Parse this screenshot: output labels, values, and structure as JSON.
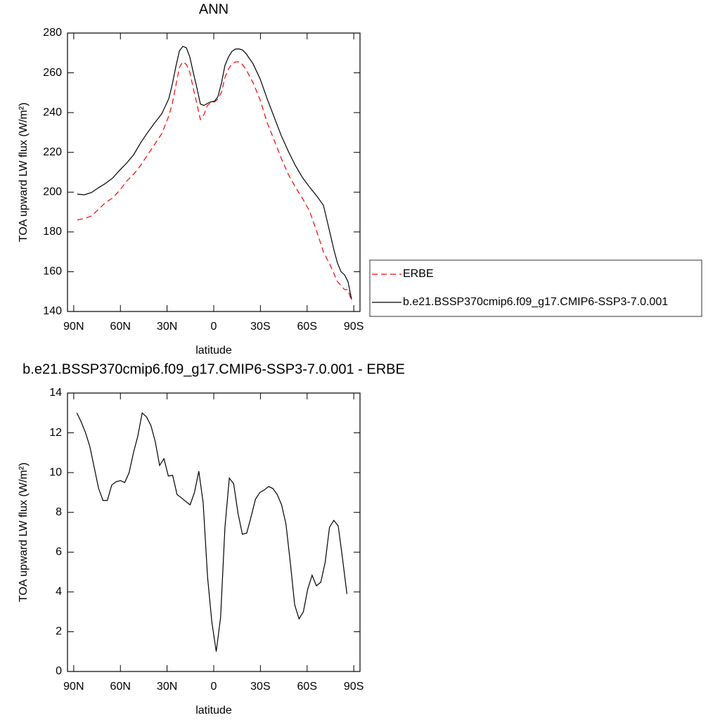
{
  "chart_data": [
    {
      "type": "line",
      "title": "ANN",
      "xlabel": "latitude",
      "ylabel": "TOA upward LW flux (W/m²)",
      "x": [
        87.7,
        83.2,
        78.6,
        74.1,
        69.6,
        65.1,
        60.6,
        56.0,
        51.5,
        47.0,
        42.5,
        38.0,
        33.4,
        28.9,
        26.7,
        24.4,
        22.1,
        19.9,
        17.6,
        15.4,
        13.1,
        10.8,
        8.6,
        6.3,
        4.1,
        1.8,
        -0.5,
        -2.7,
        -5.0,
        -7.2,
        -9.5,
        -11.7,
        -14.0,
        -16.3,
        -18.5,
        -20.8,
        -25.3,
        -29.8,
        -34.3,
        -38.9,
        -43.4,
        -47.9,
        -52.4,
        -56.9,
        -61.5,
        -66.0,
        -70.5,
        -75.0,
        -77.3,
        -79.5,
        -81.8,
        -84.1,
        -86.3,
        -88.6
      ],
      "series": [
        {
          "name": "ERBE",
          "color": "#ff0000",
          "line_style": "dashed",
          "values": [
            186,
            186.7,
            188,
            191.3,
            194.8,
            197,
            200.8,
            205.5,
            209,
            213.5,
            218.8,
            224,
            229.4,
            238.3,
            244.3,
            253.5,
            262.7,
            265.5,
            264.2,
            260.3,
            252,
            244.3,
            236.5,
            239,
            243.6,
            245,
            245.4,
            246.8,
            250.3,
            257.7,
            262,
            264.4,
            265.5,
            265.5,
            264.1,
            261.6,
            255,
            246.4,
            235,
            226,
            217,
            209,
            202.6,
            197,
            190.6,
            180.7,
            170,
            163,
            159,
            155,
            153,
            151,
            151,
            145
          ]
        },
        {
          "name": "b.e21.BSSP370cmip6.f09_g17.CMIP6-SSP3-7.0.001",
          "color": "#000000",
          "line_style": "solid",
          "values": [
            199,
            198.7,
            199.8,
            202.2,
            204.4,
            207,
            210.9,
            214.6,
            218.8,
            224.8,
            230,
            234.8,
            239.4,
            247,
            254,
            263,
            271,
            273.3,
            272.6,
            268,
            260,
            252.4,
            244.3,
            243.6,
            244.6,
            245.4,
            245.7,
            248,
            255,
            263.7,
            268,
            270.8,
            272,
            272,
            271.5,
            269.6,
            264.5,
            257,
            247,
            237.6,
            228.4,
            220.6,
            213.5,
            207.5,
            202.6,
            198.3,
            193.4,
            178.5,
            170.8,
            164.4,
            160,
            158.4,
            155,
            146
          ]
        }
      ],
      "xlim": [
        94,
        -94
      ],
      "xticks": [
        {
          "value": 90,
          "label": "90N"
        },
        {
          "value": 60,
          "label": "60N"
        },
        {
          "value": 30,
          "label": "30N"
        },
        0,
        {
          "value": -30,
          "label": "30S"
        },
        {
          "value": -60,
          "label": "60S"
        },
        {
          "value": -90,
          "label": "90S"
        }
      ],
      "ylim": [
        140,
        280
      ],
      "yticks": [
        140,
        160,
        180,
        200,
        220,
        240,
        260,
        280
      ],
      "legend": "right"
    },
    {
      "type": "line",
      "title": "b.e21.BSSP370cmip6.f09_g17.CMIP6-SSP3-7.0.001 - ERBE",
      "xlabel": "latitude",
      "ylabel": "TOA upward LW flux (W/m²)",
      "x": [
        88,
        85.2,
        82.4,
        79.6,
        76.8,
        74,
        71.2,
        68.4,
        65.6,
        62.8,
        60,
        57.2,
        54.4,
        51.6,
        48.8,
        46,
        43.2,
        40.4,
        37.6,
        34.8,
        32,
        29.2,
        26.4,
        23.6,
        20.8,
        18,
        15.2,
        12.4,
        9.6,
        6.8,
        4,
        1.2,
        -1.6,
        -4.4,
        -7.2,
        -10,
        -12.8,
        -15.6,
        -18.4,
        -21.2,
        -24,
        -26.8,
        -29.6,
        -32.4,
        -35.2,
        -38,
        -40.8,
        -43.6,
        -46.4,
        -49.2,
        -52,
        -54.8,
        -57.6,
        -60.4,
        -63.2,
        -66,
        -68.8,
        -71.6,
        -74.4,
        -77.2,
        -80,
        -82.8,
        -85.6
      ],
      "values": [
        13.0,
        12.55,
        12.0,
        11.3,
        10.25,
        9.2,
        8.6,
        8.6,
        9.37,
        9.54,
        9.6,
        9.5,
        10.0,
        11.0,
        11.84,
        13.0,
        12.8,
        12.37,
        11.56,
        10.36,
        10.7,
        9.83,
        9.86,
        8.9,
        8.73,
        8.55,
        8.38,
        9.0,
        10.07,
        8.48,
        4.77,
        2.47,
        1.0,
        2.72,
        7.25,
        9.72,
        9.44,
        7.95,
        6.9,
        6.96,
        7.78,
        8.66,
        9.0,
        9.12,
        9.3,
        9.2,
        8.9,
        8.38,
        7.42,
        5.48,
        3.36,
        2.65,
        3.0,
        4.14,
        4.84,
        4.31,
        4.49,
        5.48,
        7.25,
        7.6,
        7.32,
        5.66,
        3.9
      ],
      "color": "#000000",
      "line_style": "solid",
      "xlim": [
        94,
        -94
      ],
      "xticks": [
        {
          "value": 90,
          "label": "90N"
        },
        {
          "value": 60,
          "label": "60N"
        },
        {
          "value": 30,
          "label": "30N"
        },
        0,
        {
          "value": -30,
          "label": "30S"
        },
        {
          "value": -60,
          "label": "60S"
        },
        {
          "value": -90,
          "label": "90S"
        }
      ],
      "ylim": [
        0,
        14
      ],
      "yticks": [
        0,
        2,
        4,
        6,
        8,
        10,
        12,
        14
      ]
    }
  ]
}
